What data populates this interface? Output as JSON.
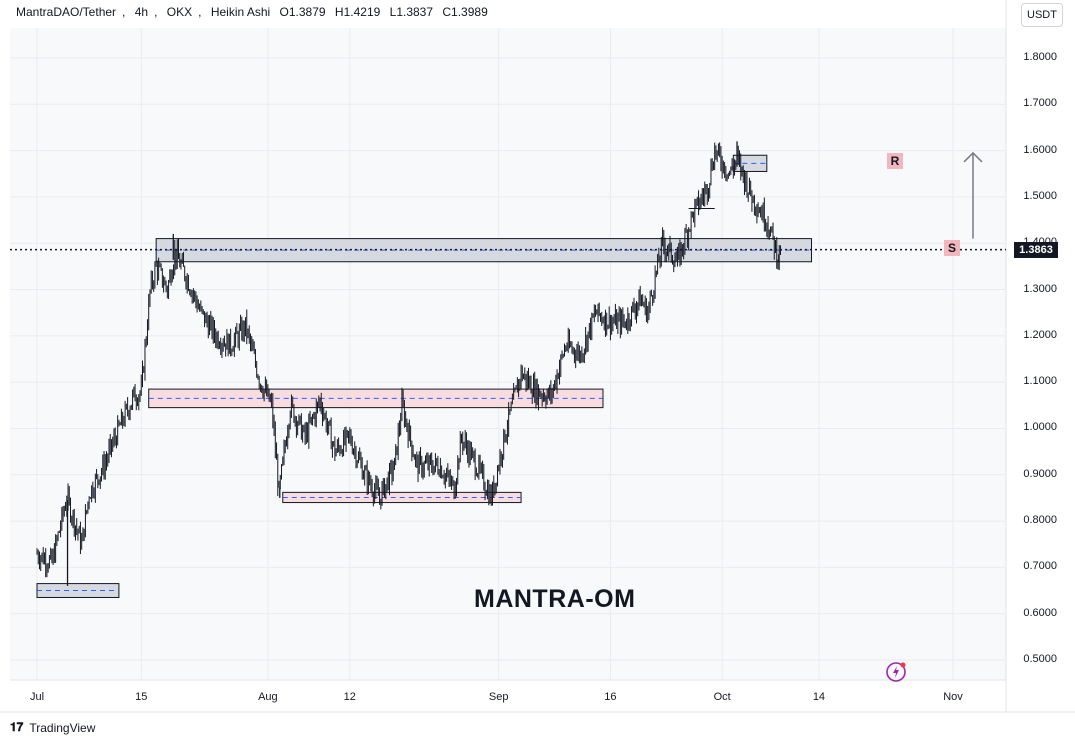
{
  "header": {
    "symbol": "MantraDAO/Tether",
    "interval": "4h",
    "exchange": "OKX",
    "style": "Heikin Ashi",
    "open": "O1.3879",
    "high": "H1.4219",
    "low": "L1.3837",
    "close": "C1.3989"
  },
  "currency": "USDT",
  "title": "MANTRA-OM",
  "last_price": "1.3863",
  "branding": "TradingView",
  "zone_labels": {
    "resistance": "R",
    "support": "S"
  },
  "chart_data": {
    "type": "candlestick",
    "title": "MantraDAO/Tether, 4h, OKX, Heikin Ashi",
    "ylabel": "USDT",
    "ylim": [
      0.44,
      1.92
    ],
    "y_ticks": [
      "1.8000",
      "1.7000",
      "1.6000",
      "1.5000",
      "1.4000",
      "1.3000",
      "1.2000",
      "1.1000",
      "1.0000",
      "0.9000",
      "0.8000",
      "0.7000",
      "0.6000",
      "0.5000"
    ],
    "x_ticks": [
      "Jul",
      "15",
      "Aug",
      "12",
      "Sep",
      "16",
      "Oct",
      "14",
      "Nov"
    ],
    "last_price": 1.3863,
    "path": [
      {
        "day": 0,
        "p": 0.73
      },
      {
        "day": 2,
        "p": 0.71
      },
      {
        "day": 4,
        "p": 0.85
      },
      {
        "day": 6,
        "p": 0.75
      },
      {
        "day": 7,
        "p": 0.86
      },
      {
        "day": 9,
        "p": 0.92
      },
      {
        "day": 11,
        "p": 1.0
      },
      {
        "day": 13,
        "p": 1.07
      },
      {
        "day": 14,
        "p": 1.08
      },
      {
        "day": 15.2,
        "p": 1.3
      },
      {
        "day": 16,
        "p": 1.35
      },
      {
        "day": 17.5,
        "p": 1.3
      },
      {
        "day": 18.5,
        "p": 1.38
      },
      {
        "day": 20,
        "p": 1.33
      },
      {
        "day": 22,
        "p": 1.25
      },
      {
        "day": 24,
        "p": 1.2
      },
      {
        "day": 26,
        "p": 1.18
      },
      {
        "day": 28,
        "p": 1.22
      },
      {
        "day": 30,
        "p": 1.1
      },
      {
        "day": 31.5,
        "p": 1.05
      },
      {
        "day": 32.5,
        "p": 0.86
      },
      {
        "day": 34,
        "p": 1.05
      },
      {
        "day": 36,
        "p": 0.98
      },
      {
        "day": 38,
        "p": 1.06
      },
      {
        "day": 40,
        "p": 0.95
      },
      {
        "day": 42,
        "p": 0.98
      },
      {
        "day": 44,
        "p": 0.9
      },
      {
        "day": 46,
        "p": 0.85
      },
      {
        "day": 48,
        "p": 0.92
      },
      {
        "day": 49,
        "p": 1.05
      },
      {
        "day": 51,
        "p": 0.92
      },
      {
        "day": 54,
        "p": 0.92
      },
      {
        "day": 56,
        "p": 0.87
      },
      {
        "day": 57,
        "p": 0.98
      },
      {
        "day": 59,
        "p": 0.92
      },
      {
        "day": 61,
        "p": 0.85
      },
      {
        "day": 63,
        "p": 1.0
      },
      {
        "day": 65,
        "p": 1.12
      },
      {
        "day": 67,
        "p": 1.08
      },
      {
        "day": 69,
        "p": 1.07
      },
      {
        "day": 71,
        "p": 1.18
      },
      {
        "day": 73,
        "p": 1.16
      },
      {
        "day": 75,
        "p": 1.25
      },
      {
        "day": 77,
        "p": 1.23
      },
      {
        "day": 79,
        "p": 1.23
      },
      {
        "day": 81,
        "p": 1.28
      },
      {
        "day": 82,
        "p": 1.25
      },
      {
        "day": 84,
        "p": 1.4
      },
      {
        "day": 86,
        "p": 1.36
      },
      {
        "day": 88,
        "p": 1.46
      },
      {
        "day": 90,
        "p": 1.52
      },
      {
        "day": 91,
        "p": 1.6
      },
      {
        "day": 93,
        "p": 1.55
      },
      {
        "day": 94,
        "p": 1.58
      },
      {
        "day": 96,
        "p": 1.5
      },
      {
        "day": 98,
        "p": 1.45
      },
      {
        "day": 99.5,
        "p": 1.37
      },
      {
        "day": 100,
        "p": 1.4
      }
    ],
    "zones": [
      {
        "name": "resistance-top",
        "from_day": 93.5,
        "to_day": 98,
        "low": 1.555,
        "high": 1.59,
        "color": "#d1d4dc"
      },
      {
        "name": "support-main",
        "from_day": 16,
        "to_day": 104,
        "low": 1.36,
        "high": 1.41,
        "color": "#d1d4dc"
      },
      {
        "name": "demand-mid",
        "from_day": 15,
        "to_day": 76,
        "low": 1.045,
        "high": 1.085,
        "color": "#f8d7da"
      },
      {
        "name": "demand-low",
        "from_day": 33,
        "to_day": 65,
        "low": 0.84,
        "high": 0.862,
        "color": "#f8d7da"
      },
      {
        "name": "demand-jul",
        "from_day": 0,
        "to_day": 11,
        "low": 0.635,
        "high": 0.665,
        "color": "#d1d4dc"
      }
    ]
  }
}
